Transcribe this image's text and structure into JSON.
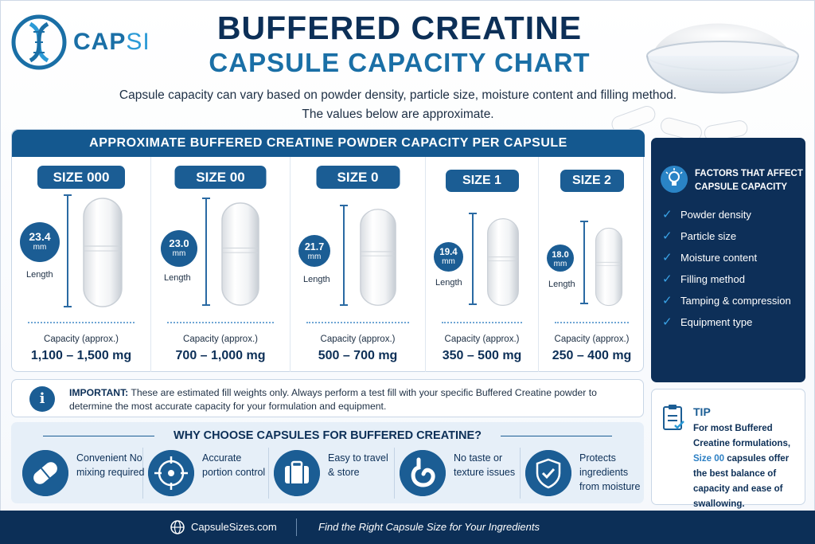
{
  "brand": {
    "name_main": "CAP",
    "name_suffix": "SI"
  },
  "header": {
    "title_line1": "BUFFERED CREATINE",
    "title_line2": "CAPSULE CAPACITY CHART",
    "subtitle": "Capsule capacity can vary based on powder density, particle size, moisture content and filling method. The values below are approximate."
  },
  "panel": {
    "heading": "APPROXIMATE BUFFERED CREATINE POWDER CAPACITY PER CAPSULE",
    "capacity_label": "Capacity (approx.)",
    "length_label": "Length",
    "unit": "mm",
    "sizes": [
      {
        "name": "SIZE 000",
        "length": "23.4",
        "capacity": "1,100 – 1,500 mg"
      },
      {
        "name": "SIZE 00",
        "length": "23.0",
        "capacity": "700 – 1,000 mg"
      },
      {
        "name": "SIZE 0",
        "length": "21.7",
        "capacity": "500 – 700 mg"
      },
      {
        "name": "SIZE 1",
        "length": "19.4",
        "capacity": "350 – 500 mg"
      },
      {
        "name": "SIZE 2",
        "length": "18.0",
        "capacity": "250 – 400 mg"
      }
    ]
  },
  "factors": {
    "title": "FACTORS THAT AFFECT CAPSULE CAPACITY",
    "items": [
      "Powder density",
      "Particle size",
      "Moisture content",
      "Filling method",
      "Tamping & compression",
      "Equipment type"
    ]
  },
  "important": {
    "label": "IMPORTANT:",
    "text": " These are estimated fill weights only. Always perform a test fill with your specific Buffered Creatine powder to determine the most accurate capacity for your formulation and equipment."
  },
  "why": {
    "title": "WHY CHOOSE CAPSULES FOR BUFFERED CREATINE?",
    "items": [
      {
        "icon": "pill-icon",
        "text": "Convenient No mixing required"
      },
      {
        "icon": "target-icon",
        "text": "Accurate portion control"
      },
      {
        "icon": "suitcase-icon",
        "text": "Easy to travel & store"
      },
      {
        "icon": "stomach-icon",
        "text": "No taste or texture issues"
      },
      {
        "icon": "shield-check-icon",
        "text": "Protects ingredients from moisture"
      }
    ]
  },
  "tip": {
    "title": "TIP",
    "text_before": "For most Buffered Creatine formulations, ",
    "highlight": "Size 00",
    "text_after": " capsules offer the best balance of capacity and ease of swallowing."
  },
  "footer": {
    "site": "CapsuleSizes.com",
    "tagline": "Find the Right Capsule Size for Your Ingredients"
  },
  "colors": {
    "navy": "#0c2f57",
    "accent": "#1b5d94",
    "light_blue": "#2b9ad6"
  }
}
